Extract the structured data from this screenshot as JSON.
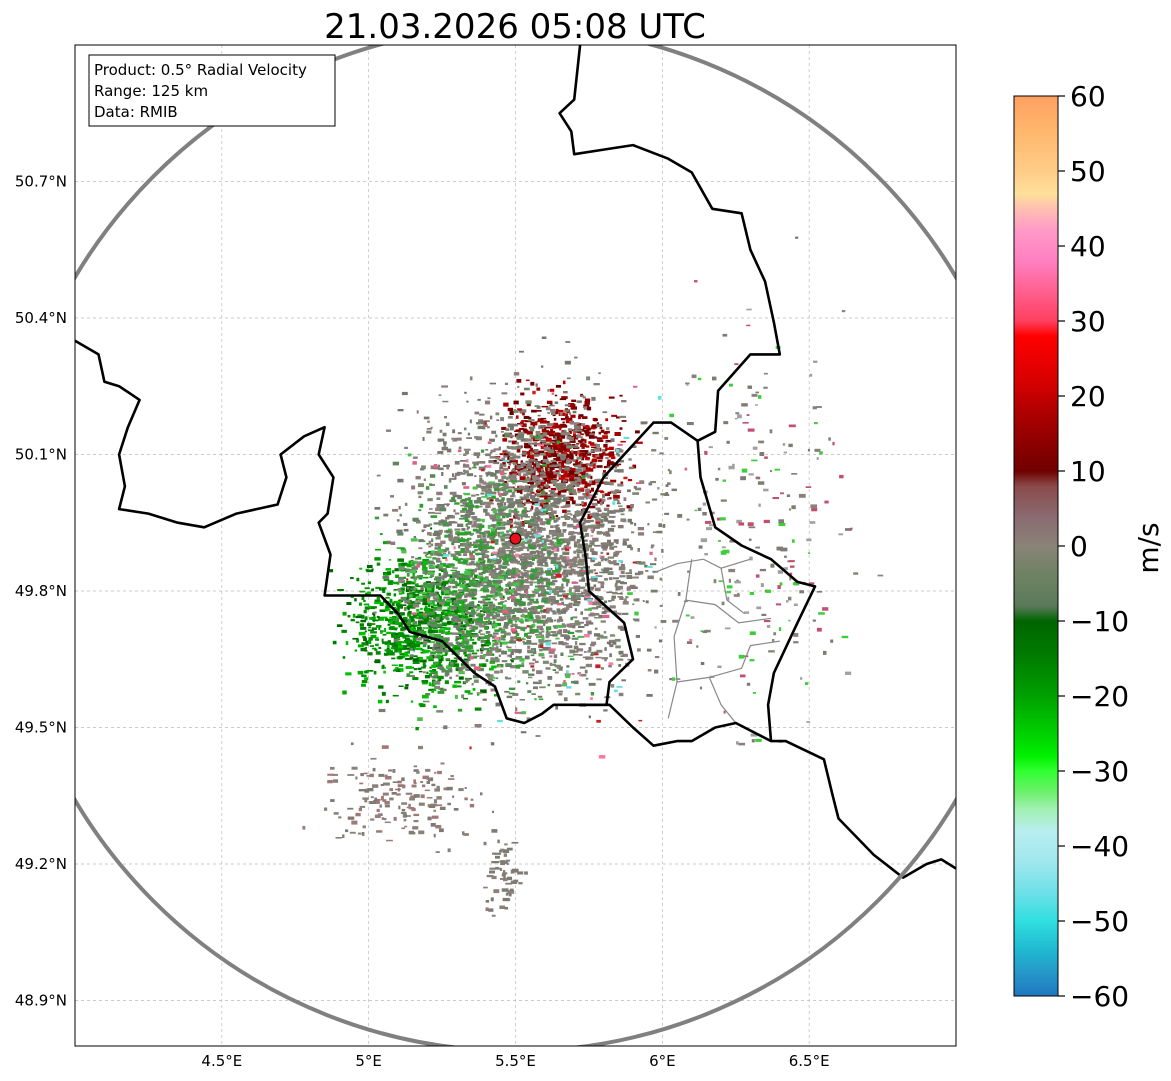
{
  "title": "21.03.2026 05:08 UTC",
  "info_box": {
    "product": "Product: 0.5° Radial Velocity",
    "range": "Range: 125 km",
    "data": "Data: RMIB"
  },
  "map": {
    "lon_range": [
      4.0,
      7.0
    ],
    "lat_range": [
      48.8,
      51.0
    ],
    "radar_site": {
      "lon": 5.5,
      "lat": 49.915
    },
    "range_km": 125,
    "lat_ticks": [
      {
        "value": 50.7,
        "label": "50.7°N"
      },
      {
        "value": 50.4,
        "label": "50.4°N"
      },
      {
        "value": 50.1,
        "label": "50.1°N"
      },
      {
        "value": 49.8,
        "label": "49.8°N"
      },
      {
        "value": 49.5,
        "label": "49.5°N"
      },
      {
        "value": 49.2,
        "label": "49.2°N"
      },
      {
        "value": 48.9,
        "label": "48.9°N"
      }
    ],
    "lon_ticks": [
      {
        "value": 4.5,
        "label": "4.5°E"
      },
      {
        "value": 5.0,
        "label": "5°E"
      },
      {
        "value": 5.5,
        "label": "5.5°E"
      },
      {
        "value": 6.0,
        "label": "6°E"
      },
      {
        "value": 6.5,
        "label": "6.5°E"
      }
    ],
    "borders": [
      [
        [
          4.0,
          50.35
        ],
        [
          4.08,
          50.32
        ],
        [
          4.1,
          50.26
        ],
        [
          4.15,
          50.25
        ],
        [
          4.22,
          50.22
        ],
        [
          4.18,
          50.16
        ],
        [
          4.15,
          50.1
        ],
        [
          4.17,
          50.03
        ],
        [
          4.15,
          49.98
        ],
        [
          4.25,
          49.97
        ],
        [
          4.35,
          49.95
        ],
        [
          4.44,
          49.94
        ],
        [
          4.55,
          49.97
        ],
        [
          4.69,
          49.99
        ],
        [
          4.72,
          50.05
        ],
        [
          4.7,
          50.1
        ],
        [
          4.78,
          50.14
        ],
        [
          4.85,
          50.16
        ],
        [
          4.83,
          50.1
        ],
        [
          4.88,
          50.05
        ],
        [
          4.86,
          49.97
        ],
        [
          4.83,
          49.95
        ],
        [
          4.87,
          49.88
        ],
        [
          4.85,
          49.79
        ],
        [
          4.94,
          49.79
        ],
        [
          5.04,
          49.79
        ],
        [
          5.1,
          49.75
        ],
        [
          5.14,
          49.71
        ],
        [
          5.25,
          49.69
        ],
        [
          5.36,
          49.62
        ],
        [
          5.43,
          49.59
        ],
        [
          5.47,
          49.52
        ],
        [
          5.53,
          49.51
        ],
        [
          5.59,
          49.53
        ],
        [
          5.63,
          49.55
        ],
        [
          5.71,
          49.55
        ]
      ],
      [
        [
          5.71,
          49.55
        ],
        [
          5.82,
          49.55
        ],
        [
          5.9,
          49.5
        ],
        [
          5.97,
          49.46
        ],
        [
          6.05,
          49.47
        ],
        [
          6.1,
          49.47
        ],
        [
          6.18,
          49.5
        ],
        [
          6.25,
          49.51
        ],
        [
          6.37,
          49.47
        ],
        [
          6.42,
          49.47
        ],
        [
          6.55,
          49.43
        ],
        [
          6.58,
          49.35
        ],
        [
          6.6,
          49.3
        ],
        [
          6.72,
          49.22
        ],
        [
          6.82,
          49.17
        ],
        [
          6.9,
          49.2
        ],
        [
          6.95,
          49.21
        ],
        [
          7.0,
          49.19
        ]
      ],
      [
        [
          6.37,
          49.47
        ],
        [
          6.36,
          49.55
        ],
        [
          6.38,
          49.62
        ],
        [
          6.46,
          49.73
        ],
        [
          6.52,
          49.81
        ],
        [
          6.46,
          49.82
        ],
        [
          6.37,
          49.87
        ],
        [
          6.27,
          49.9
        ],
        [
          6.18,
          49.94
        ],
        [
          6.13,
          50.05
        ],
        [
          6.12,
          50.13
        ]
      ],
      [
        [
          5.71,
          49.55
        ],
        [
          5.81,
          49.55
        ],
        [
          5.82,
          49.6
        ],
        [
          5.9,
          49.65
        ],
        [
          5.87,
          49.73
        ],
        [
          5.75,
          49.8
        ],
        [
          5.74,
          49.87
        ],
        [
          5.72,
          49.95
        ],
        [
          5.8,
          50.05
        ],
        [
          5.87,
          50.1
        ],
        [
          5.97,
          50.17
        ],
        [
          6.03,
          50.17
        ],
        [
          6.12,
          50.13
        ]
      ],
      [
        [
          6.12,
          50.13
        ],
        [
          6.18,
          50.15
        ],
        [
          6.19,
          50.24
        ],
        [
          6.3,
          50.32
        ],
        [
          6.4,
          50.32
        ],
        [
          6.38,
          50.39
        ],
        [
          6.35,
          50.48
        ],
        [
          6.3,
          50.55
        ],
        [
          6.27,
          50.63
        ],
        [
          6.17,
          50.64
        ],
        [
          6.1,
          50.72
        ],
        [
          6.02,
          50.75
        ],
        [
          5.9,
          50.78
        ],
        [
          5.8,
          50.77
        ],
        [
          5.7,
          50.76
        ],
        [
          5.69,
          50.81
        ],
        [
          5.65,
          50.85
        ],
        [
          5.7,
          50.88
        ],
        [
          5.72,
          51.0
        ]
      ]
    ],
    "lu_cantons": [
      [
        [
          5.97,
          49.84
        ],
        [
          6.05,
          49.86
        ],
        [
          6.14,
          49.87
        ],
        [
          6.2,
          49.85
        ],
        [
          6.3,
          49.87
        ]
      ],
      [
        [
          6.1,
          49.87
        ],
        [
          6.08,
          49.78
        ],
        [
          6.04,
          49.7
        ],
        [
          6.05,
          49.6
        ],
        [
          6.02,
          49.52
        ]
      ],
      [
        [
          6.08,
          49.78
        ],
        [
          6.18,
          49.77
        ],
        [
          6.26,
          49.73
        ],
        [
          6.37,
          49.74
        ]
      ],
      [
        [
          6.05,
          49.6
        ],
        [
          6.16,
          49.61
        ],
        [
          6.27,
          49.63
        ],
        [
          6.3,
          49.68
        ],
        [
          6.4,
          49.69
        ]
      ],
      [
        [
          6.2,
          49.85
        ],
        [
          6.22,
          49.78
        ],
        [
          6.28,
          49.75
        ]
      ],
      [
        [
          6.16,
          49.61
        ],
        [
          6.2,
          49.55
        ],
        [
          6.25,
          49.51
        ]
      ]
    ],
    "colors": {
      "border": "#000000",
      "canton": "#888888",
      "range_ring": "#808080",
      "grid": "#bbbbbb",
      "site_marker": "#e8101a"
    }
  },
  "echo_regions": [
    {
      "name": "inbound-green",
      "lon": 5.18,
      "lat": 49.73,
      "spread": [
        0.2,
        0.12
      ],
      "count": 900,
      "palette": [
        "#007b00",
        "#009000",
        "#00a800",
        "#006600",
        "#00c000",
        "#008800"
      ]
    },
    {
      "name": "outbound-red",
      "lon": 5.65,
      "lat": 50.1,
      "spread": [
        0.16,
        0.1
      ],
      "count": 700,
      "palette": [
        "#8b0000",
        "#a00000",
        "#7a0000",
        "#c00000",
        "#6b0000"
      ]
    },
    {
      "name": "near-zero-gray",
      "lon": 5.55,
      "lat": 49.9,
      "spread": [
        0.33,
        0.25
      ],
      "count": 2400,
      "palette": [
        "#7f7b74",
        "#8a827a",
        "#6f7a6a",
        "#7d8a72",
        "#907c7c",
        "#7a7570"
      ]
    },
    {
      "name": "mixed-green",
      "lon": 5.4,
      "lat": 49.82,
      "spread": [
        0.25,
        0.2
      ],
      "count": 600,
      "palette": [
        "#5e8760",
        "#3f9a3f",
        "#2ca02c",
        "#4cbf4c"
      ]
    },
    {
      "name": "south-streak",
      "lon": 5.1,
      "lat": 49.35,
      "spread": [
        0.22,
        0.08
      ],
      "count": 160,
      "palette": [
        "#7f7b74",
        "#8a827a",
        "#a07878"
      ]
    },
    {
      "name": "southern-tail",
      "lon": 5.45,
      "lat": 49.18,
      "spread": [
        0.05,
        0.08
      ],
      "count": 60,
      "palette": [
        "#7f7b74",
        "#8a827a"
      ]
    },
    {
      "name": "eastern-speckle",
      "lon": 6.3,
      "lat": 49.95,
      "spread": [
        0.25,
        0.35
      ],
      "count": 220,
      "palette": [
        "#7f7b74",
        "#8a827a",
        "#c05070",
        "#3ad03a",
        "#a0a0a0"
      ]
    },
    {
      "name": "pink-specks",
      "lon": 5.6,
      "lat": 49.85,
      "spread": [
        0.35,
        0.3
      ],
      "count": 120,
      "palette": [
        "#e0608a",
        "#ff7aa8",
        "#c81e1e",
        "#60e0e0"
      ]
    }
  ],
  "colorbar": {
    "label": "m/s",
    "min": -60,
    "max": 60,
    "ticks": [
      "60",
      "50",
      "40",
      "30",
      "20",
      "10",
      "0",
      "−10",
      "−20",
      "−30",
      "−40",
      "−50",
      "−60"
    ],
    "stops": [
      {
        "v": 60,
        "c": "#ffa060"
      },
      {
        "v": 55,
        "c": "#ffb86e"
      },
      {
        "v": 50,
        "c": "#ffcc88"
      },
      {
        "v": 47,
        "c": "#ffe09a"
      },
      {
        "v": 45,
        "c": "#ffc0b0"
      },
      {
        "v": 42,
        "c": "#ff99c8"
      },
      {
        "v": 38,
        "c": "#ff80c0"
      },
      {
        "v": 34,
        "c": "#ff6090"
      },
      {
        "v": 30,
        "c": "#ff4060"
      },
      {
        "v": 28,
        "c": "#ff0000"
      },
      {
        "v": 22,
        "c": "#d80000"
      },
      {
        "v": 18,
        "c": "#b00000"
      },
      {
        "v": 14,
        "c": "#900000"
      },
      {
        "v": 10,
        "c": "#700000"
      },
      {
        "v": 8,
        "c": "#8a4a4a"
      },
      {
        "v": 4,
        "c": "#8a6a70"
      },
      {
        "v": 0,
        "c": "#8a8378"
      },
      {
        "v": -4,
        "c": "#6e8262"
      },
      {
        "v": -8,
        "c": "#5a7a5a"
      },
      {
        "v": -10,
        "c": "#006400"
      },
      {
        "v": -15,
        "c": "#007e00"
      },
      {
        "v": -20,
        "c": "#00a000"
      },
      {
        "v": -25,
        "c": "#00d000"
      },
      {
        "v": -28,
        "c": "#00f000"
      },
      {
        "v": -30,
        "c": "#30ff30"
      },
      {
        "v": -33,
        "c": "#70f070"
      },
      {
        "v": -35,
        "c": "#a0f0b0"
      },
      {
        "v": -38,
        "c": "#b8eef0"
      },
      {
        "v": -42,
        "c": "#a0e8ee"
      },
      {
        "v": -46,
        "c": "#70e0e8"
      },
      {
        "v": -50,
        "c": "#30dfe0"
      },
      {
        "v": -54,
        "c": "#20b8d0"
      },
      {
        "v": -57,
        "c": "#2596c8"
      },
      {
        "v": -60,
        "c": "#1f77c0"
      }
    ]
  }
}
